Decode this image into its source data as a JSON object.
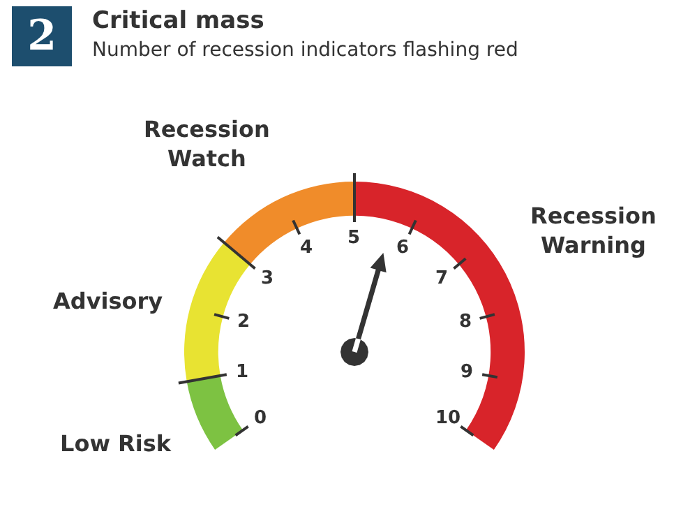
{
  "chart_data": {
    "type": "donut",
    "title": "Critical mass",
    "subtitle": "Number of recession indicators flashing red",
    "annotations": [
      "2",
      "0",
      "1",
      "2",
      "3",
      "4",
      "5",
      "6",
      "7",
      "8",
      "9",
      "10"
    ],
    "categories": [
      "Low Risk",
      "Advisory",
      "Recession Watch",
      "Recession Warning"
    ],
    "values": [
      10,
      20,
      20,
      50
    ],
    "colors": [
      "#7dc242",
      "#e8e332",
      "#f08c2a",
      "#d8242a"
    ],
    "needle": "Recession Warning"
  }
}
